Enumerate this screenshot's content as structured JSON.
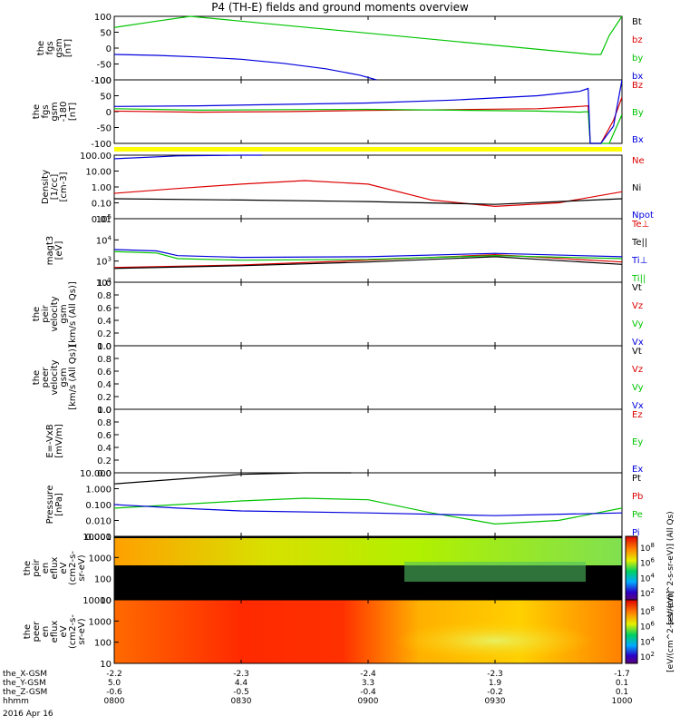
{
  "title": "P4 (TH-E) fields and ground moments overview",
  "date": "2016 Apr 16",
  "colors": {
    "black": "#000000",
    "red": "#dd0000",
    "green": "#00c400",
    "blue": "#0000dd",
    "yellow": "#ffff00"
  },
  "panels": [
    {
      "key": "fgs_gsm",
      "ylabel": [
        "the",
        "fgs",
        "gsm",
        "[nT]"
      ],
      "scale": "linear",
      "ylim": [
        -100,
        100
      ],
      "ticks": [
        "100",
        "50",
        "0",
        "-50",
        "-100"
      ],
      "legend": [
        {
          "text": "Bt",
          "color": "black"
        },
        {
          "text": "bz",
          "color": "red"
        },
        {
          "text": "by",
          "color": "green"
        },
        {
          "text": "bx",
          "color": "blue"
        }
      ]
    },
    {
      "key": "fgs_gsm_180",
      "ylabel": [
        "the",
        "fgs",
        "gsm",
        "-180",
        "[nT]"
      ],
      "scale": "linear",
      "ylim": [
        -120,
        100
      ],
      "ticks": [
        "100",
        "50",
        "0",
        "-50",
        "-100"
      ],
      "legend": [
        {
          "text": "Bz",
          "color": "red"
        },
        {
          "text": "By",
          "color": "green"
        },
        {
          "text": "Bx",
          "color": "blue"
        }
      ]
    },
    {
      "key": "density",
      "ylabel": [
        "Density",
        "[1/cc]",
        "[cm-3]"
      ],
      "scale": "log",
      "ticks": [
        "100.00",
        "10.00",
        "1.00",
        "0.10",
        "0.01"
      ],
      "legend": [
        {
          "text": "Ne",
          "color": "red"
        },
        {
          "text": "Ni",
          "color": "black"
        },
        {
          "text": "Npot",
          "color": "blue"
        }
      ]
    },
    {
      "key": "temperature",
      "ylabel": [
        "magt3",
        "[eV]"
      ],
      "scale": "log",
      "ticks": [
        "10^5",
        "10^4",
        "10^3",
        "10^2"
      ],
      "legend": [
        {
          "text": "Te⊥",
          "color": "red"
        },
        {
          "text": "Te||",
          "color": "black"
        },
        {
          "text": "Ti⊥",
          "color": "blue"
        },
        {
          "text": "Ti||",
          "color": "green"
        }
      ]
    },
    {
      "key": "peir_velocity",
      "ylabel": [
        "the",
        "peir",
        "velocity",
        "gsm",
        "[km/s (All Qs)]"
      ],
      "scale": "linear",
      "ylim": [
        0,
        1
      ],
      "ticks": [
        "1.0",
        "0.8",
        "0.6",
        "0.4",
        "0.2",
        "0.0"
      ],
      "legend": [
        {
          "text": "Vt",
          "color": "black"
        },
        {
          "text": "Vz",
          "color": "red"
        },
        {
          "text": "Vy",
          "color": "green"
        },
        {
          "text": "Vx",
          "color": "blue"
        }
      ]
    },
    {
      "key": "peer_velocity",
      "ylabel": [
        "the",
        "peer",
        "velocity",
        "gsm",
        "[km/s (All Qs)]"
      ],
      "scale": "linear",
      "ylim": [
        0,
        1
      ],
      "ticks": [
        "1.0",
        "0.8",
        "0.6",
        "0.4",
        "0.2",
        "0.0"
      ],
      "legend": [
        {
          "text": "Vt",
          "color": "black"
        },
        {
          "text": "Vz",
          "color": "red"
        },
        {
          "text": "Vy",
          "color": "green"
        },
        {
          "text": "Vx",
          "color": "blue"
        }
      ]
    },
    {
      "key": "efield",
      "ylabel": [
        "E=-VxB",
        "[mV/m]"
      ],
      "scale": "linear",
      "ylim": [
        0,
        1
      ],
      "ticks": [
        "1.0",
        "0.8",
        "0.6",
        "0.4",
        "0.2",
        "0.0"
      ],
      "legend": [
        {
          "text": "Ez",
          "color": "red"
        },
        {
          "text": "Ey",
          "color": "green"
        },
        {
          "text": "Ex",
          "color": "blue"
        }
      ]
    },
    {
      "key": "pressure",
      "ylabel": [
        "Pressure",
        "[nPa]"
      ],
      "scale": "log",
      "ticks": [
        "10.000",
        "1.000",
        "0.100",
        "0.010",
        "0.001"
      ],
      "legend": [
        {
          "text": "Pt",
          "color": "black"
        },
        {
          "text": "Pb",
          "color": "red"
        },
        {
          "text": "Pe",
          "color": "green"
        },
        {
          "text": "Pi",
          "color": "blue"
        }
      ]
    },
    {
      "key": "peir_spec",
      "ylabel": [
        "the",
        "peir",
        "en",
        "eflux",
        "eV",
        "(cm2-s-",
        "sr-eV)"
      ],
      "scale": "log",
      "ticks": [
        "10000",
        "1000",
        "100",
        "10"
      ],
      "legend": []
    },
    {
      "key": "peer_spec",
      "ylabel": [
        "the",
        "peer",
        "en",
        "eflux",
        "eV",
        "(cm2-s-",
        "sr-eV)"
      ],
      "scale": "log",
      "ticks": [
        "10000",
        "1000",
        "100",
        "10"
      ],
      "legend": []
    }
  ],
  "colorbar_peir": {
    "ticks": [
      "10^8",
      "10^6",
      "10^4",
      "10^2"
    ],
    "label": "[eV/(cm^2-s-sr-eV)] (All Qs)"
  },
  "colorbar_peer": {
    "ticks": [
      "10^8",
      "10^6",
      "10^4",
      "10^2"
    ],
    "label": "[eV/(cm^2-s-sr-eV)]"
  },
  "xaxis": {
    "rows": [
      {
        "name": "the_X-GSM",
        "values": [
          "-2.2",
          "-2.3",
          "-2.4",
          "-2.3",
          "-1.7"
        ]
      },
      {
        "name": "the_Y-GSM",
        "values": [
          "5.0",
          "4.4",
          "3.3",
          "1.9",
          "0.1"
        ]
      },
      {
        "name": "the_Z-GSM",
        "values": [
          "-0.6",
          "-0.5",
          "-0.4",
          "-0.2",
          "0.1"
        ]
      },
      {
        "name": "hhmm",
        "values": [
          "0800",
          "0830",
          "0900",
          "0930",
          "1000"
        ]
      }
    ]
  },
  "chart_data": {
    "type": "line",
    "title": "P4 (TH-E) fields and ground moments overview",
    "x": [
      "0800",
      "0830",
      "0900",
      "0930",
      "1000"
    ],
    "xlim": [
      "0800",
      "1000"
    ],
    "series": [
      {
        "name": "by",
        "panel": "fgs_gsm",
        "x": [
          "0800",
          "0810",
          "0818",
          "0953",
          "0955",
          "0957",
          "1000"
        ],
        "values": [
          65,
          85,
          100,
          -20,
          -20,
          40,
          100
        ]
      },
      {
        "name": "bx",
        "panel": "fgs_gsm",
        "x": [
          "0800",
          "0810",
          "0820",
          "0830",
          "0840",
          "0850",
          "0858",
          "0902"
        ],
        "values": [
          -20,
          -23,
          -28,
          -35,
          -48,
          -65,
          -85,
          -100
        ]
      },
      {
        "name": "Bz",
        "panel": "fgs_gsm_180",
        "x": [
          "0800",
          "0820",
          "0840",
          "0900",
          "0920",
          "0940",
          "0950",
          "0952",
          "0952.5",
          "0955",
          "0958",
          "1000"
        ],
        "values": [
          -8,
          -12,
          -10,
          -6,
          -3,
          0,
          8,
          10,
          -120,
          -120,
          -40,
          40
        ]
      },
      {
        "name": "By",
        "panel": "fgs_gsm_180",
        "x": [
          "0800",
          "0820",
          "0840",
          "0900",
          "0920",
          "0940",
          "0950",
          "0952",
          "0952.5",
          "0957",
          "1000"
        ],
        "values": [
          0,
          -5,
          -3,
          -2,
          -5,
          -8,
          -12,
          -10,
          -120,
          -120,
          -20
        ]
      },
      {
        "name": "Bx",
        "panel": "fgs_gsm_180",
        "x": [
          "0800",
          "0820",
          "0840",
          "0900",
          "0920",
          "0940",
          "0950",
          "0952",
          "0952.5",
          "0955",
          "0958",
          "1000"
        ],
        "values": [
          8,
          10,
          15,
          20,
          30,
          45,
          60,
          70,
          -120,
          -120,
          -60,
          100
        ]
      },
      {
        "name": "Ne",
        "panel": "density",
        "x": [
          "0800",
          "0815",
          "0830",
          "0845",
          "0900",
          "0915",
          "0930",
          "0945",
          "1000"
        ],
        "values": [
          0.4,
          0.8,
          1.5,
          2.5,
          1.5,
          0.15,
          0.06,
          0.1,
          0.5
        ]
      },
      {
        "name": "Ni",
        "panel": "density",
        "x": [
          "0800",
          "0830",
          "0900",
          "0930",
          "1000"
        ],
        "values": [
          0.18,
          0.15,
          0.12,
          0.08,
          0.18
        ]
      },
      {
        "name": "Npot",
        "panel": "density",
        "x": [
          "0800",
          "0815",
          "0830",
          "0835"
        ],
        "values": [
          60,
          90,
          150,
          200
        ]
      },
      {
        "name": "Te⊥",
        "panel": "temperature",
        "x": [
          "0800",
          "0830",
          "0900",
          "0930",
          "1000"
        ],
        "values": [
          500,
          650,
          1100,
          2000,
          900
        ]
      },
      {
        "name": "Te||",
        "panel": "temperature",
        "x": [
          "0800",
          "0830",
          "0900",
          "0930",
          "1000"
        ],
        "values": [
          450,
          600,
          900,
          1600,
          700
        ]
      },
      {
        "name": "Ti⊥",
        "panel": "temperature",
        "x": [
          "0800",
          "0810",
          "0815",
          "0830",
          "0900",
          "0930",
          "1000"
        ],
        "values": [
          3500,
          3000,
          1800,
          1500,
          1600,
          2300,
          1600
        ]
      },
      {
        "name": "Ti||",
        "panel": "temperature",
        "x": [
          "0800",
          "0810",
          "0815",
          "0830",
          "0900",
          "0930",
          "1000"
        ],
        "values": [
          2800,
          2400,
          1300,
          1100,
          1200,
          1800,
          1300
        ]
      },
      {
        "name": "Pt",
        "panel": "pressure",
        "x": [
          "0800",
          "0815",
          "0830",
          "0845",
          "0856"
        ],
        "values": [
          2,
          4,
          8,
          14,
          20
        ]
      },
      {
        "name": "Pe",
        "panel": "pressure",
        "x": [
          "0800",
          "0815",
          "0830",
          "0845",
          "0900",
          "0915",
          "0930",
          "0945",
          "1000"
        ],
        "values": [
          0.06,
          0.1,
          0.17,
          0.25,
          0.2,
          0.03,
          0.006,
          0.01,
          0.06
        ]
      },
      {
        "name": "Pi",
        "panel": "pressure",
        "x": [
          "0800",
          "0815",
          "0830",
          "0900",
          "0930",
          "1000"
        ],
        "values": [
          0.1,
          0.06,
          0.04,
          0.03,
          0.02,
          0.03
        ]
      }
    ]
  }
}
